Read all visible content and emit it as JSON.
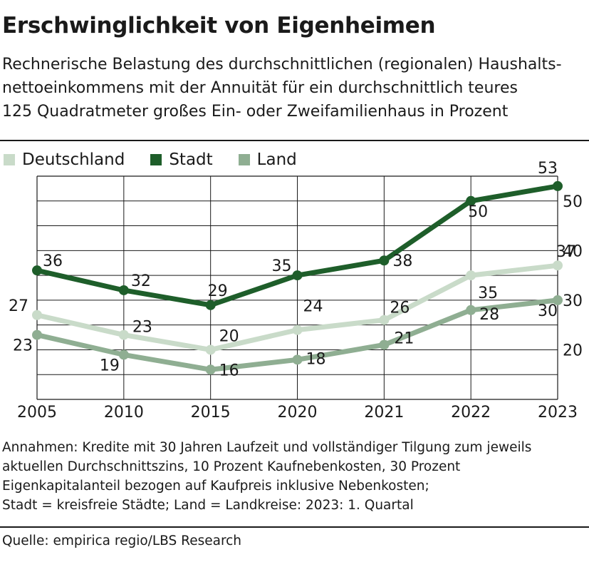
{
  "header": {
    "title": "Erschwinglichkeit von Eigenheimen",
    "subtitle_lines": [
      "Rechnerische Belastung des durchschnittlichen (regionalen) Haushalts-",
      "nettoeinkommens mit der Annuität für ein durchschnittlich teures",
      "125 Quadratmeter großes Ein- oder Zweifamilienhaus in Prozent"
    ]
  },
  "chart_data": {
    "type": "line",
    "title": "Erschwinglichkeit von Eigenheimen",
    "xlabel": "",
    "ylabel": "",
    "categories": [
      "2005",
      "2010",
      "2015",
      "2020",
      "2021",
      "2022",
      "2023"
    ],
    "ylim": [
      10,
      55
    ],
    "yticks": [
      "20",
      "30",
      "40",
      "50"
    ],
    "grid": true,
    "legend_position": "top-left",
    "y_axis_side": "right",
    "series": [
      {
        "name": "Deutschland",
        "values": [
          27,
          23,
          20,
          24,
          26,
          35,
          37
        ],
        "color": "#c9dbc9"
      },
      {
        "name": "Stadt",
        "values": [
          36,
          32,
          29,
          35,
          38,
          50,
          53
        ],
        "color": "#1e5e2a"
      },
      {
        "name": "Land",
        "values": [
          23,
          19,
          16,
          18,
          21,
          28,
          30
        ],
        "color": "#8fae92"
      }
    ]
  },
  "footer": {
    "notes_lines": [
      "Annahmen: Kredite mit 30 Jahren Laufzeit und vollständiger Tilgung zum jeweils",
      "aktuellen Durchschnittszins, 10 Prozent Kaufnebenkosten, 30 Prozent",
      "Eigenkapitalanteil bezogen auf Kaufpreis inklusive Nebenkosten;",
      "Stadt = kreisfreie Städte; Land = Landkreise: 2023: 1. Quartal"
    ],
    "source": "Quelle: empirica regio/LBS Research"
  }
}
